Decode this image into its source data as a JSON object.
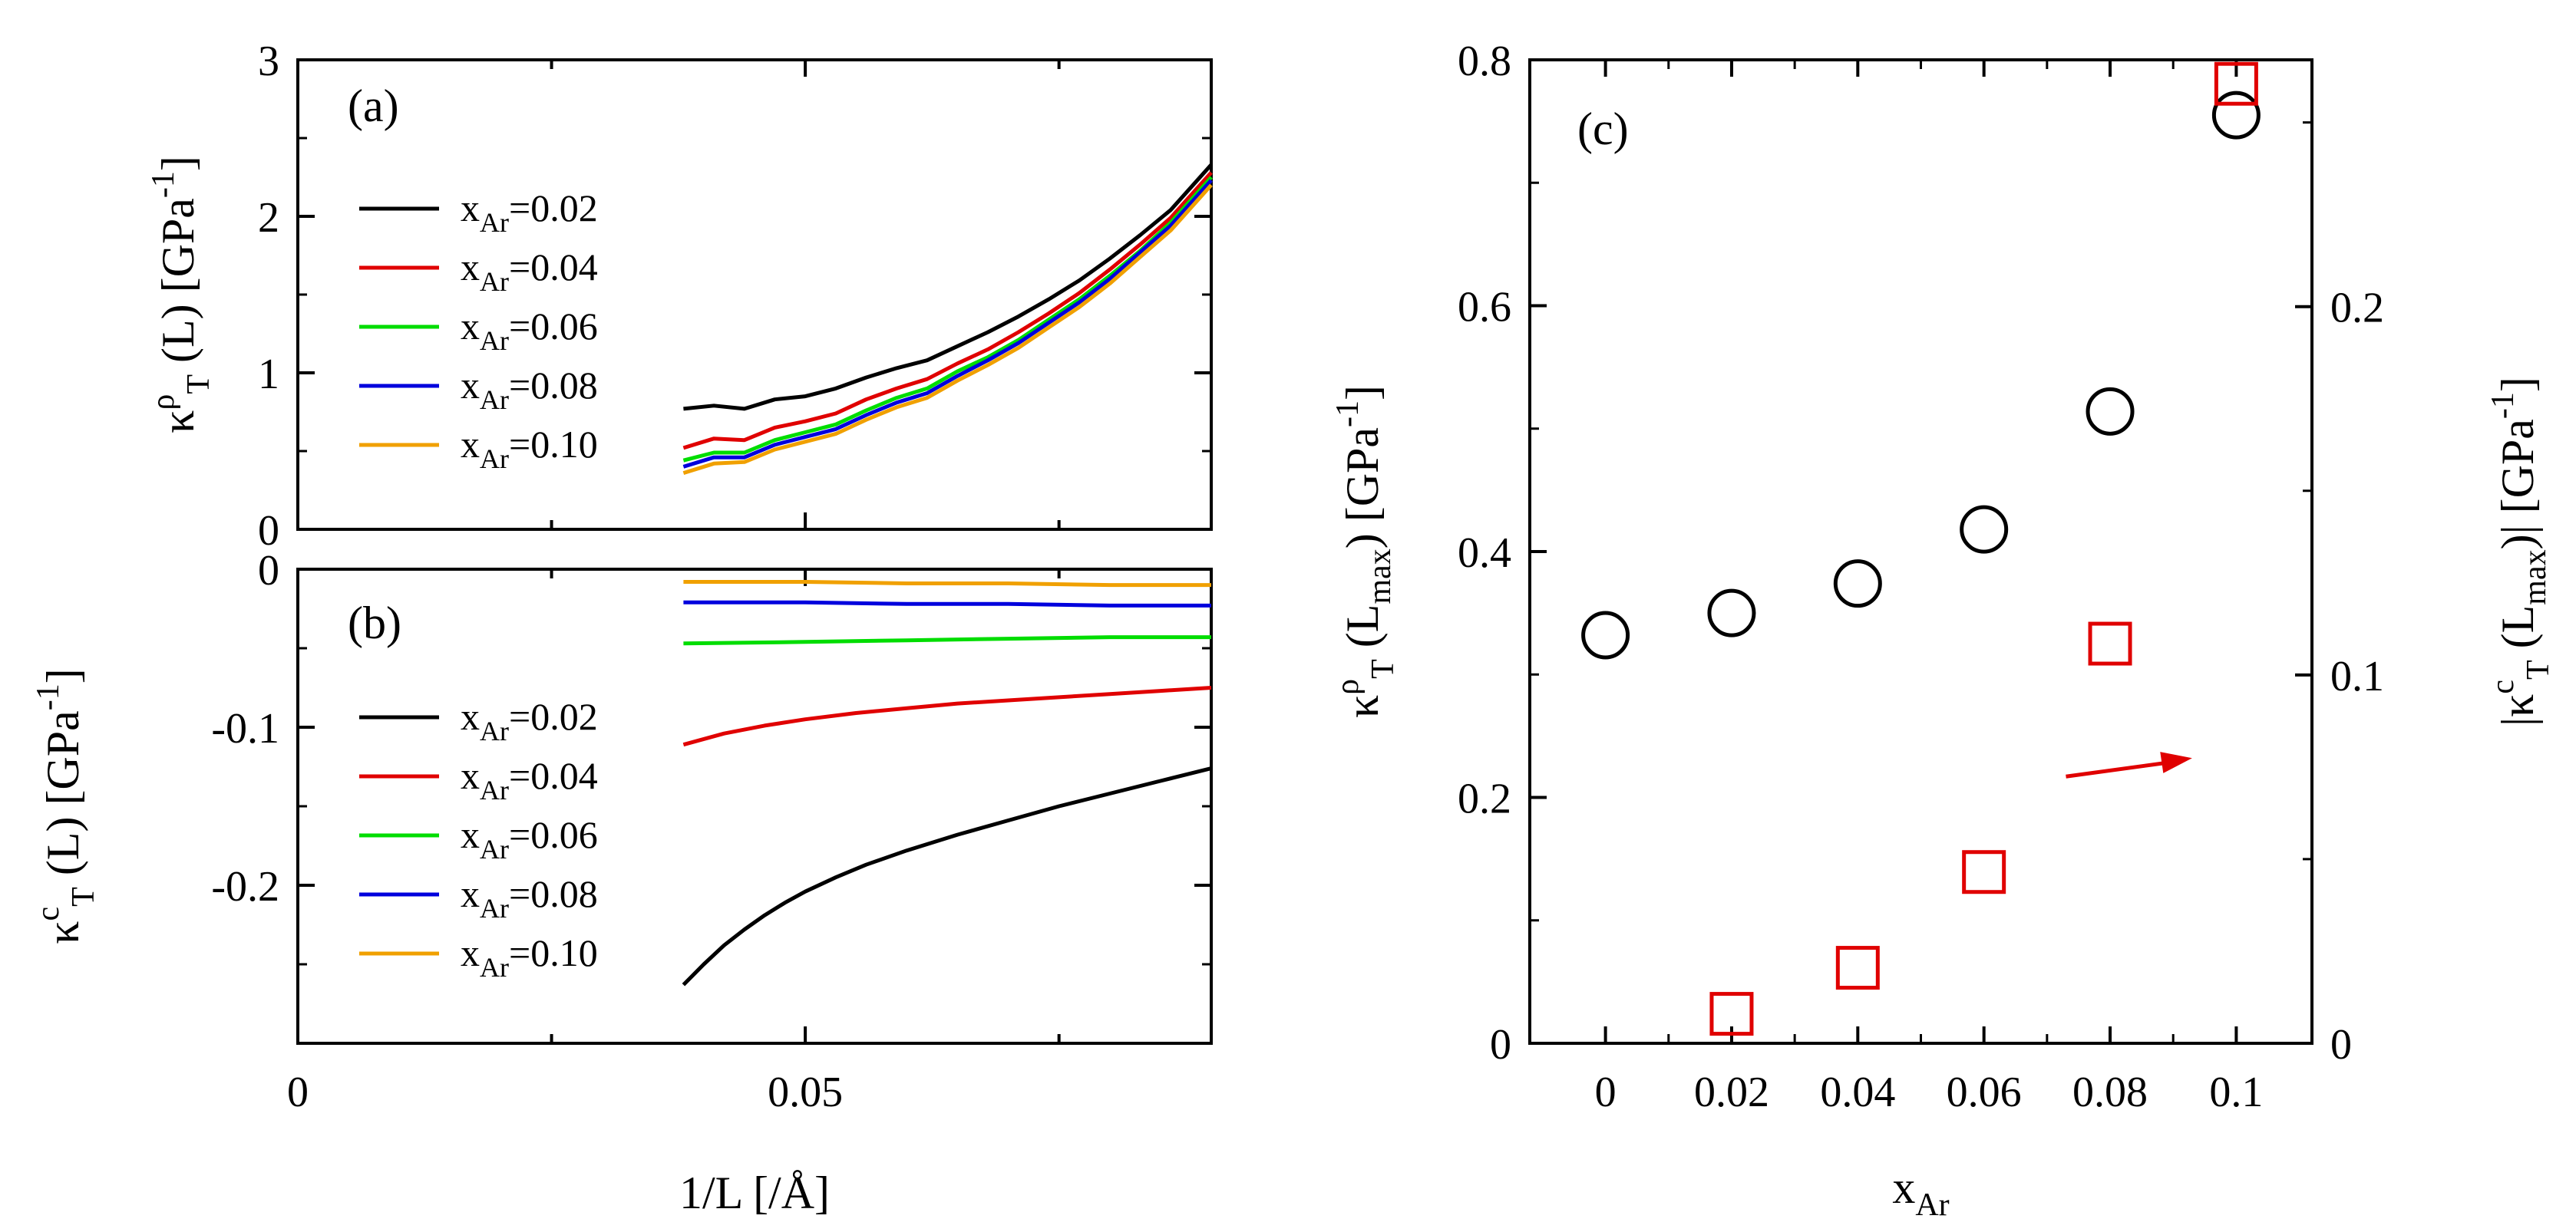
{
  "chart_data": [
    {
      "panel": "(a)",
      "type": "line",
      "xlim": [
        0,
        0.09
      ],
      "ylim": [
        0,
        3
      ],
      "x_ticks": [
        "0",
        "0.05"
      ],
      "y_ticks": [
        "0",
        "1",
        "2",
        "3"
      ],
      "ylabel": {
        "main": "κ",
        "sup": "ρ",
        "sub": "T",
        "rest": " (L) [GPa",
        "unit_sup": "-1",
        "close": "]"
      },
      "legend_placement": "left",
      "series": [
        {
          "name": "x_Ar=0.02",
          "label_main": "x",
          "label_sub": "Ar",
          "label_value": "=0.02",
          "color": "#000000",
          "x": [
            0.038,
            0.041,
            0.044,
            0.047,
            0.05,
            0.053,
            0.056,
            0.059,
            0.062,
            0.065,
            0.068,
            0.071,
            0.074,
            0.077,
            0.08,
            0.083,
            0.086,
            0.09
          ],
          "y": [
            0.77,
            0.79,
            0.77,
            0.83,
            0.85,
            0.9,
            0.97,
            1.03,
            1.08,
            1.17,
            1.26,
            1.36,
            1.47,
            1.59,
            1.73,
            1.88,
            2.04,
            2.33
          ]
        },
        {
          "name": "x_Ar=0.04",
          "label_main": "x",
          "label_sub": "Ar",
          "label_value": "=0.04",
          "color": "#e00000",
          "x": [
            0.038,
            0.041,
            0.044,
            0.047,
            0.05,
            0.053,
            0.056,
            0.059,
            0.062,
            0.065,
            0.068,
            0.071,
            0.074,
            0.077,
            0.08,
            0.083,
            0.086,
            0.09
          ],
          "y": [
            0.52,
            0.58,
            0.57,
            0.65,
            0.69,
            0.74,
            0.83,
            0.9,
            0.96,
            1.06,
            1.15,
            1.26,
            1.38,
            1.51,
            1.66,
            1.82,
            1.99,
            2.28
          ]
        },
        {
          "name": "x_Ar=0.06",
          "label_main": "x",
          "label_sub": "Ar",
          "label_value": "=0.06",
          "color": "#00dd00",
          "x": [
            0.038,
            0.041,
            0.044,
            0.047,
            0.05,
            0.053,
            0.056,
            0.059,
            0.062,
            0.065,
            0.068,
            0.071,
            0.074,
            0.077,
            0.08,
            0.083,
            0.086,
            0.09
          ],
          "y": [
            0.44,
            0.49,
            0.49,
            0.57,
            0.62,
            0.67,
            0.76,
            0.84,
            0.9,
            1.01,
            1.1,
            1.21,
            1.34,
            1.47,
            1.62,
            1.78,
            1.96,
            2.25
          ]
        },
        {
          "name": "x_Ar=0.08",
          "label_main": "x",
          "label_sub": "Ar",
          "label_value": "=0.08",
          "color": "#0000dd",
          "x": [
            0.038,
            0.041,
            0.044,
            0.047,
            0.05,
            0.053,
            0.056,
            0.059,
            0.062,
            0.065,
            0.068,
            0.071,
            0.074,
            0.077,
            0.08,
            0.083,
            0.086,
            0.09
          ],
          "y": [
            0.4,
            0.46,
            0.46,
            0.54,
            0.59,
            0.64,
            0.73,
            0.81,
            0.87,
            0.98,
            1.08,
            1.19,
            1.32,
            1.45,
            1.6,
            1.77,
            1.94,
            2.23
          ]
        },
        {
          "name": "x_Ar=0.10",
          "label_main": "x",
          "label_sub": "Ar",
          "label_value": "=0.10",
          "color": "#f0a000",
          "x": [
            0.038,
            0.041,
            0.044,
            0.047,
            0.05,
            0.053,
            0.056,
            0.059,
            0.062,
            0.065,
            0.068,
            0.071,
            0.074,
            0.077,
            0.08,
            0.083,
            0.086,
            0.09
          ],
          "y": [
            0.36,
            0.42,
            0.43,
            0.51,
            0.56,
            0.61,
            0.7,
            0.78,
            0.84,
            0.95,
            1.05,
            1.16,
            1.29,
            1.42,
            1.57,
            1.74,
            1.91,
            2.2
          ]
        }
      ]
    },
    {
      "panel": "(b)",
      "type": "line",
      "xlim": [
        0,
        0.09
      ],
      "ylim": [
        -0.3,
        0
      ],
      "x_ticks": [
        "0",
        "0.05"
      ],
      "y_ticks": [
        "-0.2",
        "-0.1",
        "0"
      ],
      "xlabel": "1/L [/Å]",
      "ylabel": {
        "main": "κ",
        "sup": "c",
        "sub": "T",
        "rest": " (L) [GPa",
        "unit_sup": "-1",
        "close": "]"
      },
      "legend_placement": "left",
      "series": [
        {
          "name": "x_Ar=0.02",
          "label_main": "x",
          "label_sub": "Ar",
          "label_value": "=0.02",
          "color": "#000000",
          "x": [
            0.038,
            0.04,
            0.042,
            0.044,
            0.046,
            0.048,
            0.05,
            0.053,
            0.056,
            0.06,
            0.065,
            0.07,
            0.075,
            0.08,
            0.085,
            0.09
          ],
          "y": [
            -0.263,
            -0.25,
            -0.238,
            -0.228,
            -0.219,
            -0.211,
            -0.204,
            -0.195,
            -0.187,
            -0.178,
            -0.168,
            -0.159,
            -0.15,
            -0.142,
            -0.134,
            -0.126
          ]
        },
        {
          "name": "x_Ar=0.04",
          "label_main": "x",
          "label_sub": "Ar",
          "label_value": "=0.04",
          "color": "#e00000",
          "x": [
            0.038,
            0.042,
            0.046,
            0.05,
            0.055,
            0.06,
            0.065,
            0.07,
            0.075,
            0.08,
            0.085,
            0.09
          ],
          "y": [
            -0.111,
            -0.104,
            -0.099,
            -0.095,
            -0.091,
            -0.088,
            -0.085,
            -0.083,
            -0.081,
            -0.079,
            -0.077,
            -0.075
          ]
        },
        {
          "name": "x_Ar=0.06",
          "label_main": "x",
          "label_sub": "Ar",
          "label_value": "=0.06",
          "color": "#00dd00",
          "x": [
            0.038,
            0.05,
            0.06,
            0.07,
            0.08,
            0.09
          ],
          "y": [
            -0.047,
            -0.046,
            -0.045,
            -0.044,
            -0.043,
            -0.043
          ]
        },
        {
          "name": "x_Ar=0.08",
          "label_main": "x",
          "label_sub": "Ar",
          "label_value": "=0.08",
          "color": "#0000dd",
          "x": [
            0.038,
            0.05,
            0.06,
            0.07,
            0.08,
            0.09
          ],
          "y": [
            -0.021,
            -0.021,
            -0.022,
            -0.022,
            -0.023,
            -0.023
          ]
        },
        {
          "name": "x_Ar=0.10",
          "label_main": "x",
          "label_sub": "Ar",
          "label_value": "=0.10",
          "color": "#f0a000",
          "x": [
            0.038,
            0.05,
            0.06,
            0.07,
            0.08,
            0.09
          ],
          "y": [
            -0.008,
            -0.008,
            -0.009,
            -0.009,
            -0.01,
            -0.01
          ]
        }
      ]
    },
    {
      "panel": "(c)",
      "type": "scatter",
      "xlim": [
        -0.012,
        0.112
      ],
      "ylim": [
        0,
        0.8
      ],
      "y2lim": [
        0,
        0.267
      ],
      "x_ticks": [
        "0",
        "0.02",
        "0.04",
        "0.06",
        "0.08",
        "0.1"
      ],
      "y_ticks": [
        "0",
        "0.2",
        "0.4",
        "0.6",
        "0.8"
      ],
      "y2_ticks": [
        "0",
        "0.1",
        "0.2"
      ],
      "xlabel": {
        "main": "x",
        "sub": "Ar"
      },
      "ylabel": {
        "main": "κ",
        "sup": "ρ",
        "sub": "T",
        "rest": " (L",
        "lsub": "max",
        "rest2": ") [GPa",
        "unit_sup": "-1",
        "close": "]"
      },
      "y2label": {
        "pre": "|κ",
        "sup": "c",
        "sub": "T",
        "rest": " (L",
        "lsub": "max",
        "rest2": ")| [GPa",
        "unit_sup": "-1",
        "close": "]"
      },
      "series": [
        {
          "marker": "circle",
          "axis": "left",
          "color": "#000000",
          "x": [
            0,
            0.02,
            0.04,
            0.06,
            0.08,
            0.1
          ],
          "y": [
            0.332,
            0.35,
            0.374,
            0.418,
            0.514,
            0.755
          ]
        },
        {
          "marker": "square",
          "axis": "right",
          "color": "#e00000",
          "x": [
            0.02,
            0.04,
            0.06,
            0.08,
            0.1
          ],
          "y": [
            0.008,
            0.0205,
            0.0465,
            0.1085,
            0.2605
          ]
        }
      ],
      "arrow": {
        "color": "#e00000",
        "from": [
          0.073,
          0.217
        ],
        "to": [
          0.093,
          0.232
        ]
      }
    }
  ]
}
